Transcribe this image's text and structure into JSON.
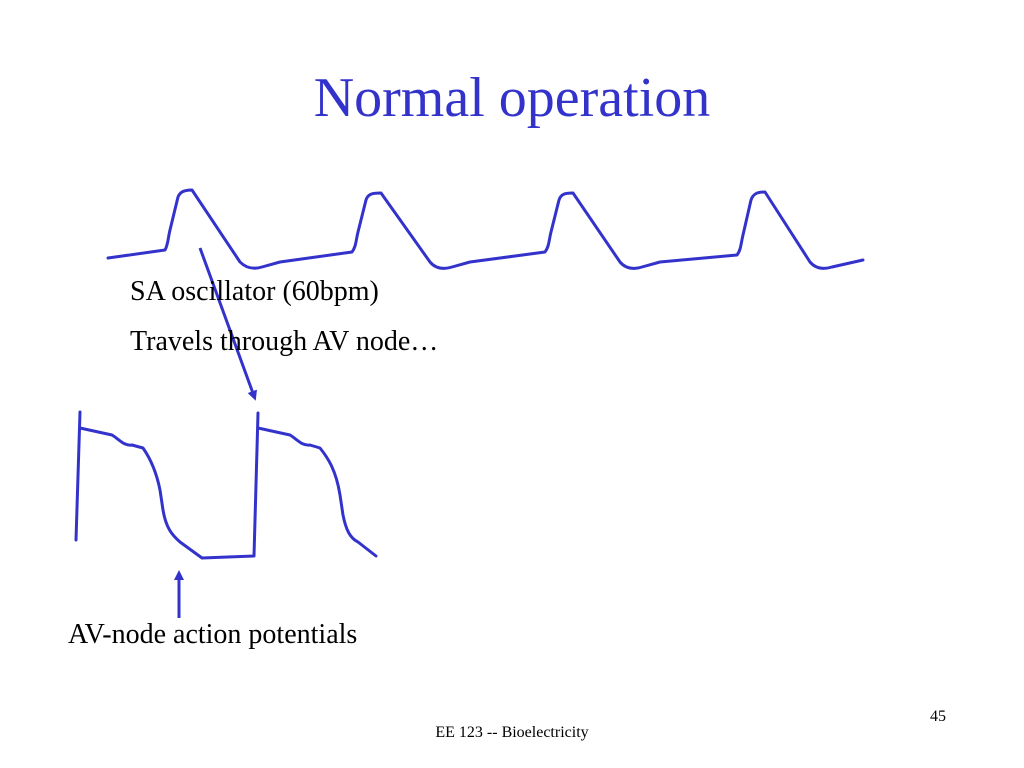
{
  "slide": {
    "title": "Normal operation",
    "sa_label": "SA oscillator (60bpm)",
    "travels_label": "Travels through AV node…",
    "av_label": "AV-node action potentials",
    "footer": "EE 123 -- Bioelectricity",
    "slide_number": "45"
  },
  "colors": {
    "title": "#3333cc",
    "trace": "#3333cc",
    "text": "#000000"
  }
}
